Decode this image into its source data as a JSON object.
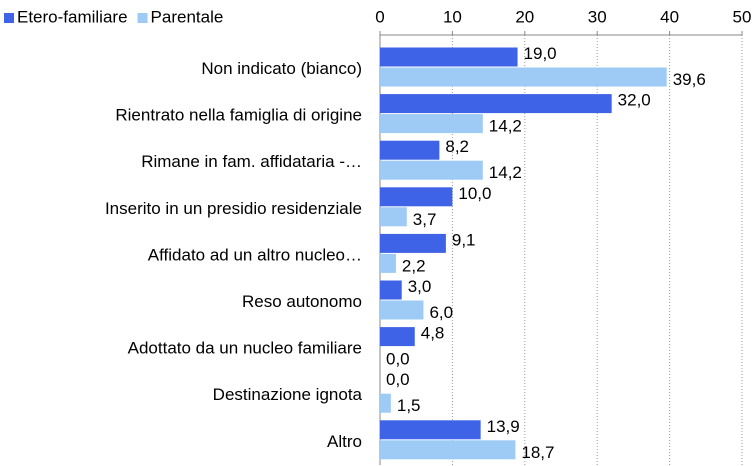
{
  "chart_data": {
    "type": "bar",
    "orientation": "horizontal",
    "categories": [
      "Non indicato (bianco)",
      "Rientrato nella famiglia di origine",
      "Rimane in fam. affidataria -…",
      "Inserito in un presidio residenziale",
      "Affidato ad un altro nucleo…",
      "Reso autonomo",
      "Adottato da un nucleo familiare",
      "Destinazione ignota",
      "Altro"
    ],
    "series": [
      {
        "name": "Etero-familiare",
        "color": "#3f63e6",
        "values": [
          19.0,
          32.0,
          8.2,
          10.0,
          9.1,
          3.0,
          4.8,
          0.0,
          13.9
        ],
        "value_labels": [
          "19,0",
          "32,0",
          "8,2",
          "10,0",
          "9,1",
          "3,0",
          "4,8",
          "0,0",
          "13,9"
        ]
      },
      {
        "name": "Parentale",
        "color": "#9dcbf5",
        "values": [
          39.6,
          14.2,
          14.2,
          3.7,
          2.2,
          6.0,
          0.0,
          1.5,
          18.7
        ],
        "value_labels": [
          "39,6",
          "14,2",
          "14,2",
          "3,7",
          "2,2",
          "6,0",
          "0,0",
          "1,5",
          "18,7"
        ]
      }
    ],
    "xlim": [
      0,
      50
    ],
    "xticks": [
      0,
      10,
      20,
      30,
      40,
      50
    ],
    "grid": true,
    "legend": "top-left"
  }
}
